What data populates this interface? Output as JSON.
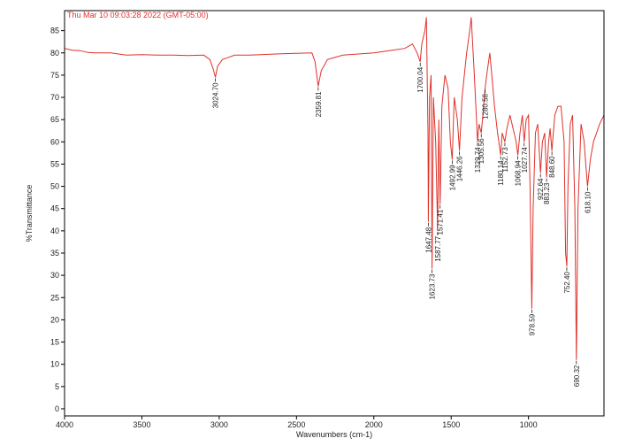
{
  "chart_data": {
    "type": "line",
    "title": "Thu Mar 10 09:03:28 2022 (GMT-05:00)",
    "xlabel": "Wavenumbers (cm-1)",
    "ylabel": "%Transmittance",
    "color": "#e0302a",
    "xlim": [
      4000,
      512
    ],
    "ylim": [
      -1.6,
      89.5
    ],
    "xticks": [
      4000,
      3500,
      3000,
      2500,
      2000,
      1500,
      1000
    ],
    "yticks": [
      0,
      5,
      10,
      15,
      20,
      25,
      30,
      35,
      40,
      45,
      50,
      55,
      60,
      65,
      70,
      75,
      80,
      85
    ],
    "x": [
      4000,
      3950,
      3900,
      3850,
      3800,
      3700,
      3600,
      3500,
      3400,
      3300,
      3200,
      3100,
      3060,
      3040,
      3024.7,
      3010,
      2980,
      2900,
      2800,
      2600,
      2400,
      2380,
      2359.81,
      2340,
      2300,
      2200,
      2000,
      1900,
      1800,
      1750,
      1720,
      1700.04,
      1690,
      1670,
      1660,
      1650,
      1647.48,
      1640,
      1630,
      1623.73,
      1615,
      1600,
      1587.77,
      1580,
      1571.41,
      1560,
      1540,
      1520,
      1505,
      1492.99,
      1480,
      1460,
      1446.26,
      1430,
      1400,
      1380,
      1370,
      1350,
      1335,
      1329.74,
      1320,
      1305.56,
      1295,
      1280.58,
      1270,
      1250,
      1235,
      1220,
      1200,
      1180.14,
      1170,
      1152.73,
      1140,
      1120,
      1100,
      1080,
      1068.94,
      1055,
      1040,
      1027.74,
      1015,
      1000,
      990,
      978.59,
      970,
      955,
      940,
      922.64,
      910,
      895,
      883.23,
      870,
      860,
      848.6,
      830,
      810,
      790,
      770,
      760,
      752.4,
      745,
      730,
      715,
      700,
      690.32,
      680,
      660,
      640,
      630,
      618.1,
      600,
      580,
      560,
      540,
      512
    ],
    "values": [
      81,
      80.6,
      80.5,
      80.1,
      80,
      80,
      79.5,
      79.6,
      79.5,
      79.5,
      79.4,
      79.5,
      78.5,
      76.5,
      74.5,
      77,
      78.5,
      79.5,
      79.5,
      79.8,
      80,
      78,
      72.5,
      76,
      78.5,
      79.5,
      80,
      80.5,
      81,
      82,
      80,
      78,
      82,
      85,
      88,
      62,
      42,
      70,
      75,
      31.5,
      70,
      60,
      40,
      65,
      46,
      68,
      75,
      72,
      60,
      56,
      70,
      65,
      58,
      70,
      80,
      85,
      88,
      75,
      64,
      60,
      64,
      62,
      66,
      72,
      75,
      80,
      74,
      68,
      62,
      57,
      62,
      60,
      63,
      66,
      63,
      60,
      57,
      62,
      66,
      60,
      65,
      66,
      50,
      22.5,
      45,
      62,
      64,
      53,
      60,
      62,
      52,
      60,
      63,
      58,
      66,
      68,
      68,
      60,
      35,
      32,
      50,
      64,
      66,
      45,
      11,
      45,
      64,
      60,
      55,
      50,
      56,
      60,
      62,
      64,
      66
    ],
    "peaks": [
      {
        "x": 3024.7,
        "label": "3024.70"
      },
      {
        "x": 2359.81,
        "label": "2359.81"
      },
      {
        "x": 1700.04,
        "label": "1700.04"
      },
      {
        "x": 1647.48,
        "label": "1647.48"
      },
      {
        "x": 1623.73,
        "label": "1623.73"
      },
      {
        "x": 1587.77,
        "label": "1587.77"
      },
      {
        "x": 1571.41,
        "label": "1571.41"
      },
      {
        "x": 1492.99,
        "label": "1492.99"
      },
      {
        "x": 1446.26,
        "label": "1446.26"
      },
      {
        "x": 1329.74,
        "label": "1329.74"
      },
      {
        "x": 1305.56,
        "label": "1305.56"
      },
      {
        "x": 1280.58,
        "label": "1280.58"
      },
      {
        "x": 1180.14,
        "label": "1180.14"
      },
      {
        "x": 1152.73,
        "label": "1152.73"
      },
      {
        "x": 1068.94,
        "label": "1068.94"
      },
      {
        "x": 1027.74,
        "label": "1027.74"
      },
      {
        "x": 978.59,
        "label": "978.59"
      },
      {
        "x": 922.64,
        "label": "922.64"
      },
      {
        "x": 883.23,
        "label": "883.23"
      },
      {
        "x": 848.6,
        "label": "848.60"
      },
      {
        "x": 752.4,
        "label": "752.40"
      },
      {
        "x": 690.32,
        "label": "690.32"
      },
      {
        "x": 618.1,
        "label": "618.10"
      }
    ]
  }
}
